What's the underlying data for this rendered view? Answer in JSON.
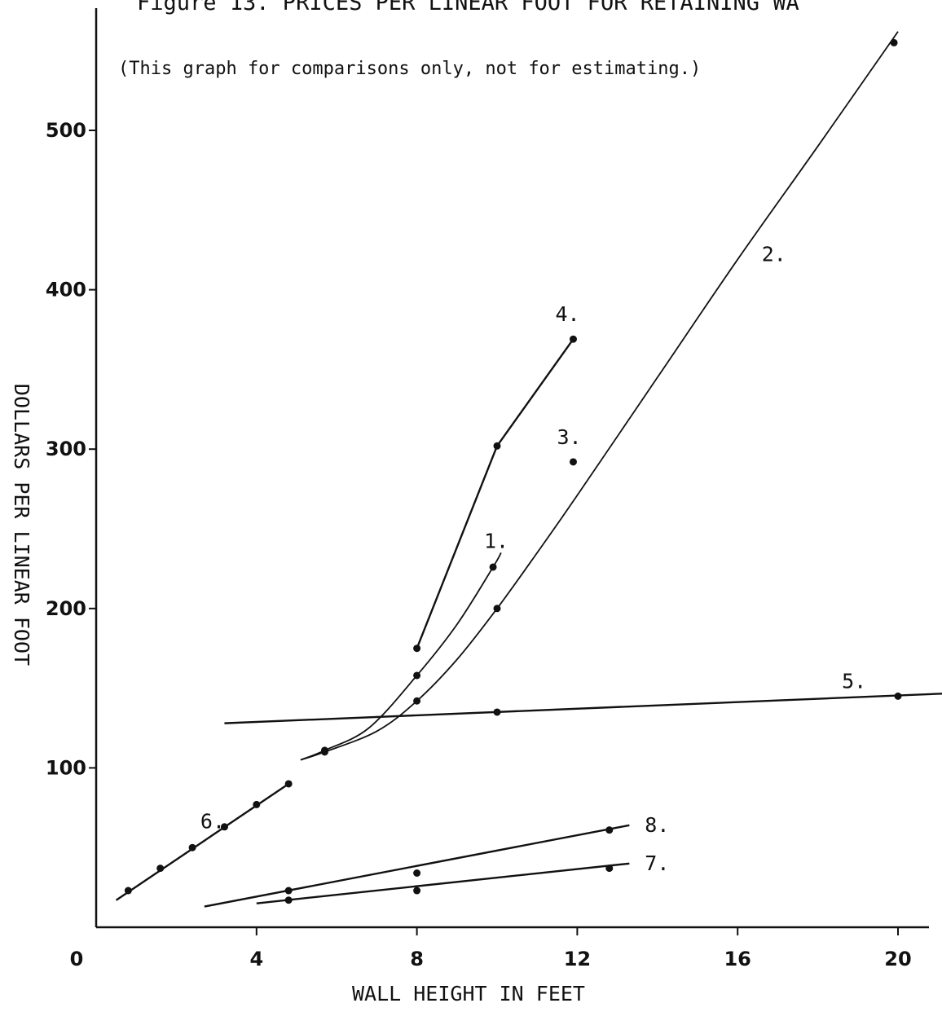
{
  "chart_data": {
    "type": "line",
    "title": "Figure 13.  PRICES PER LINEAR FOOT FOR RETAINING WA",
    "subtitle": "(This graph for comparisons only, not for estimating.)",
    "xlabel": "WALL HEIGHT IN FEET",
    "ylabel": "DOLLARS PER LINEAR FOOT",
    "xlim": [
      0,
      21
    ],
    "ylim": [
      0,
      560
    ],
    "x_ticks": [
      0,
      4,
      8,
      12,
      16,
      20
    ],
    "x_tick_labels": [
      "0",
      "4",
      "8",
      "12",
      "16",
      "20"
    ],
    "y_ticks": [
      100,
      200,
      300,
      400,
      500
    ],
    "y_tick_labels": [
      "100",
      "200",
      "300",
      "400",
      "500"
    ],
    "grid": false,
    "legend": "none",
    "series": [
      {
        "name": "1.",
        "curved": true,
        "line": [
          [
            5.1,
            105
          ],
          [
            5.7,
            111
          ],
          [
            6.8,
            125
          ],
          [
            8.0,
            158
          ],
          [
            9.0,
            190
          ],
          [
            9.9,
            226
          ],
          [
            10.1,
            235
          ]
        ],
        "points": [
          [
            5.7,
            111
          ],
          [
            8.0,
            158
          ],
          [
            9.9,
            226
          ]
        ]
      },
      {
        "name": "2.",
        "curved": true,
        "line": [
          [
            5.1,
            105
          ],
          [
            5.7,
            110
          ],
          [
            7.0,
            123
          ],
          [
            8.0,
            142
          ],
          [
            9.0,
            168
          ],
          [
            10.0,
            200
          ],
          [
            11.0,
            235
          ],
          [
            12.0,
            271
          ],
          [
            14.0,
            345
          ],
          [
            16.0,
            419
          ],
          [
            18.0,
            490
          ],
          [
            20.0,
            562
          ]
        ],
        "points": [
          [
            5.7,
            110
          ],
          [
            8.0,
            142
          ],
          [
            10.0,
            200
          ],
          [
            19.9,
            555
          ]
        ]
      },
      {
        "name": "3.",
        "line": [],
        "points": [
          [
            11.9,
            292
          ]
        ]
      },
      {
        "name": "4.",
        "line": [
          [
            8.0,
            175
          ],
          [
            10.0,
            302
          ],
          [
            11.9,
            369
          ]
        ],
        "points": [
          [
            8.0,
            175
          ],
          [
            10.0,
            302
          ],
          [
            11.9,
            369
          ]
        ]
      },
      {
        "name": "5.",
        "line": [
          [
            3.2,
            128
          ],
          [
            21.5,
            147
          ]
        ],
        "points": [
          [
            10.0,
            135
          ],
          [
            20.0,
            145
          ]
        ]
      },
      {
        "name": "6.",
        "line": [
          [
            0.5,
            17
          ],
          [
            4.8,
            90
          ]
        ],
        "points": [
          [
            0.8,
            23
          ],
          [
            1.6,
            37
          ],
          [
            2.4,
            50
          ],
          [
            3.2,
            63
          ],
          [
            4.0,
            77
          ],
          [
            4.8,
            90
          ]
        ]
      },
      {
        "name": "7.",
        "line": [
          [
            4.0,
            15
          ],
          [
            13.3,
            40
          ]
        ],
        "points": [
          [
            4.8,
            17
          ],
          [
            8.0,
            23
          ],
          [
            12.8,
            37
          ]
        ]
      },
      {
        "name": "8.",
        "line": [
          [
            2.7,
            13
          ],
          [
            13.3,
            64
          ]
        ],
        "points": [
          [
            4.8,
            23
          ],
          [
            8.0,
            34
          ],
          [
            12.8,
            61
          ]
        ]
      }
    ]
  }
}
